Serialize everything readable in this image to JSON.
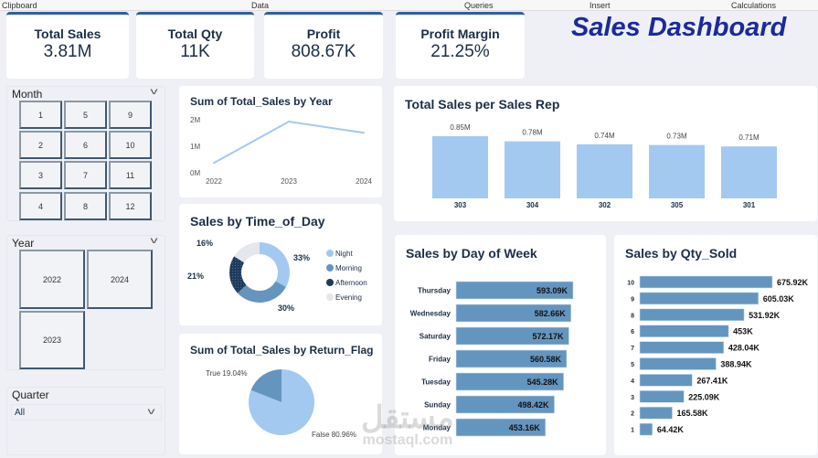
{
  "ribbon": [
    "Clipboard",
    "Data",
    "Queries",
    "Insert",
    "Calculations"
  ],
  "kpis": [
    {
      "label": "Total Sales",
      "value": "3.81M"
    },
    {
      "label": "Total Qty",
      "value": "11K"
    },
    {
      "label": "Profit",
      "value": "808.67K"
    },
    {
      "label": "Profit Margin",
      "value": "21.25%"
    }
  ],
  "dashboard_title": "Sales Dashboard",
  "slicers": {
    "month": {
      "label": "Month",
      "options": [
        "1",
        "5",
        "9",
        "2",
        "6",
        "10",
        "3",
        "7",
        "11",
        "4",
        "8",
        "12"
      ]
    },
    "year": {
      "label": "Year",
      "options": [
        "2022",
        "2024",
        "2023"
      ]
    },
    "quarter": {
      "label": "Quarter",
      "value": "All"
    }
  },
  "colors": {
    "light_blue": "#a3c9f0",
    "mid_blue": "#6495bf",
    "dark_navy": "#1f3a5c",
    "light_gray": "#e4e7ed",
    "kpi_accent": "#2b5fa5",
    "title": "#1b2a9c"
  },
  "watermark": {
    "arabic": "مستقل",
    "latin": "mostaql.com"
  },
  "chart_data": [
    {
      "type": "line",
      "title": "Sum of Total_Sales by Year",
      "categories": [
        "2022",
        "2023",
        "2024"
      ],
      "values": [
        0.37,
        1.93,
        1.51
      ],
      "unit": "M",
      "yticks": [
        "0M",
        "1M",
        "2M"
      ],
      "ylim": [
        0,
        2
      ]
    },
    {
      "type": "pie",
      "subtype": "donut",
      "title": "Sales by Time_of_Day",
      "categories": [
        "Night",
        "Morning",
        "Afternoon",
        "Evening"
      ],
      "values": [
        33,
        30,
        21,
        16
      ],
      "labels": [
        "33%",
        "30%",
        "21%",
        "16%"
      ],
      "legend": "right"
    },
    {
      "type": "pie",
      "title": "Sum of Total_Sales by Return_Flag",
      "categories": [
        "True",
        "False"
      ],
      "values": [
        19.04,
        80.96
      ],
      "labels": [
        "True 19.04%",
        "False 80.96%"
      ]
    },
    {
      "type": "bar",
      "title": "Total Sales per Sales Rep",
      "categories": [
        "303",
        "304",
        "302",
        "305",
        "301"
      ],
      "values": [
        0.85,
        0.78,
        0.74,
        0.73,
        0.71
      ],
      "labels": [
        "0.85M",
        "0.78M",
        "0.74M",
        "0.73M",
        "0.71M"
      ]
    },
    {
      "type": "bar",
      "orientation": "horizontal",
      "title": "Sales by Day of Week",
      "categories": [
        "Thursday",
        "Wednesday",
        "Saturday",
        "Friday",
        "Tuesday",
        "Sunday",
        "Monday"
      ],
      "values": [
        593.09,
        582.66,
        572.17,
        560.58,
        545.28,
        498.42,
        453.16
      ],
      "labels": [
        "593.09K",
        "582.66K",
        "572.17K",
        "560.58K",
        "545.28K",
        "498.42K",
        "453.16K"
      ]
    },
    {
      "type": "bar",
      "orientation": "horizontal",
      "title": "Sales by Qty_Sold",
      "categories": [
        "10",
        "9",
        "8",
        "6",
        "7",
        "5",
        "4",
        "3",
        "2",
        "1"
      ],
      "values": [
        675.92,
        605.03,
        531.92,
        453,
        428.04,
        388.94,
        267.41,
        225.09,
        165.58,
        64.42
      ],
      "labels": [
        "675.92K",
        "605.03K",
        "531.92K",
        "453K",
        "428.04K",
        "388.94K",
        "267.41K",
        "225.09K",
        "165.58K",
        "64.42K"
      ]
    }
  ]
}
